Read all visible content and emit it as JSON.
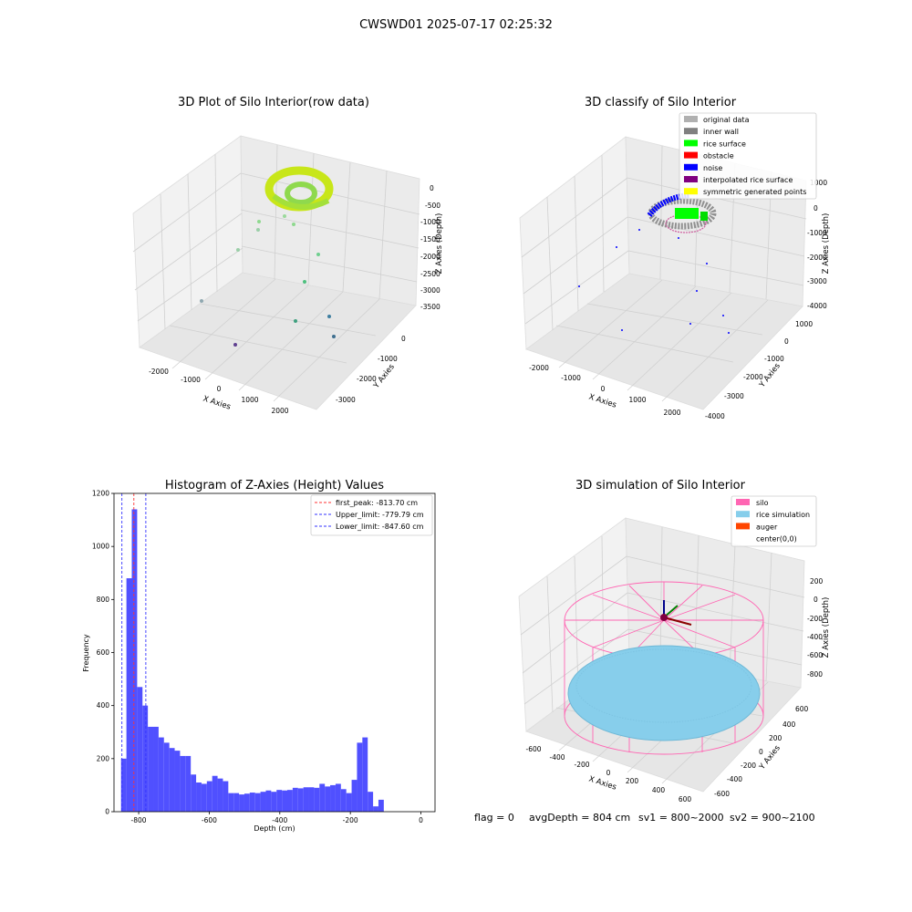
{
  "figure": {
    "suptitle": "CWSWD01 2025-07-17 02:25:32",
    "status": {
      "flag": "flag = 0",
      "avg_depth": "avgDepth = 804 cm",
      "sv1": "sv1 = 800~2000",
      "sv2": "sv2 = 900~2100"
    }
  },
  "colors": {
    "histogram_bar": "#5050ff",
    "first_peak_line": "#ff3333",
    "limit_line": "#3333ff",
    "silo": "#ff66b3",
    "rice_simulation": "#87ceeb",
    "auger": "#ff4500",
    "original_data": "#b0b0b0",
    "inner_wall": "#808080",
    "rice_surface": "#00ff00",
    "obstacle": "#ff0000",
    "noise": "#0000ff",
    "interpolated_rice_surface": "#800080",
    "symmetric_generated_points": "#ffff00"
  },
  "chart_data": [
    {
      "type": "scatter",
      "title": "3D Plot of Silo Interior(row data)",
      "xlabel": "X Axies",
      "ylabel": "Y Axies",
      "zlabel": "Z Axies (Depth)",
      "x_ticks": [
        "-2000",
        "-1000",
        "0",
        "1000",
        "2000"
      ],
      "y_ticks": [
        "0",
        "-1000",
        "-2000",
        "-3000"
      ],
      "z_ticks": [
        "0",
        "-500",
        "-1000",
        "-1500",
        "-2000",
        "-2500",
        "-3000",
        "-3500"
      ]
    },
    {
      "type": "scatter",
      "title": "3D classify of Silo Interior",
      "xlabel": "X Axies",
      "ylabel": "Y Axies",
      "zlabel": "Z Axies (Depth)",
      "x_ticks": [
        "-2000",
        "-1000",
        "0",
        "1000",
        "2000"
      ],
      "y_ticks": [
        "1000",
        "0",
        "-1000",
        "-2000",
        "-3000",
        "-4000"
      ],
      "z_ticks": [
        "1000",
        "0",
        "-1000",
        "-2000",
        "-3000",
        "-4000"
      ],
      "legend": [
        {
          "label": "original data",
          "color": "#b0b0b0"
        },
        {
          "label": "inner wall",
          "color": "#808080"
        },
        {
          "label": "rice surface",
          "color": "#00ff00"
        },
        {
          "label": "obstacle",
          "color": "#ff0000"
        },
        {
          "label": "noise",
          "color": "#0000ff"
        },
        {
          "label": "interpolated rice surface",
          "color": "#800080"
        },
        {
          "label": "symmetric generated points",
          "color": "#ffff00"
        }
      ],
      "legend_position": "top-right"
    },
    {
      "type": "bar",
      "title": "Histogram of Z-Axies (Height) Values",
      "xlabel": "Depth (cm)",
      "ylabel": "Frequency",
      "xlim": [
        -870,
        40
      ],
      "ylim": [
        0,
        1200
      ],
      "x_ticks": [
        "-800",
        "-600",
        "-400",
        "-200",
        "0"
      ],
      "y_ticks": [
        "0",
        "200",
        "400",
        "600",
        "800",
        "1000",
        "1200"
      ],
      "bin_width": 15.2,
      "bins_start": -850,
      "values": [
        200,
        880,
        1140,
        470,
        400,
        320,
        320,
        280,
        260,
        240,
        230,
        210,
        210,
        140,
        110,
        105,
        115,
        135,
        125,
        115,
        70,
        70,
        65,
        68,
        72,
        70,
        75,
        80,
        75,
        82,
        80,
        82,
        90,
        88,
        92,
        92,
        90,
        105,
        95,
        100,
        105,
        85,
        70,
        120,
        260,
        280,
        75,
        20,
        45
      ],
      "vlines": [
        {
          "label": "first_peak: -813.70 cm",
          "x": -813.7,
          "color": "#ff3333"
        },
        {
          "label": "Upper_limit: -779.79 cm",
          "x": -779.79,
          "color": "#3333ff"
        },
        {
          "label": "Lower_limit: -847.60 cm",
          "x": -847.6,
          "color": "#3333ff"
        }
      ],
      "legend_position": "top-right"
    },
    {
      "type": "scatter",
      "title": "3D simulation of Silo Interior",
      "xlabel": "X Axies",
      "ylabel": "Y Axies",
      "zlabel": "Z Axies (Depth)",
      "x_ticks": [
        "-600",
        "-400",
        "-200",
        "0",
        "200",
        "400",
        "600"
      ],
      "y_ticks": [
        "600",
        "400",
        "200",
        "0",
        "-200",
        "-400",
        "-600"
      ],
      "z_ticks": [
        "200",
        "0",
        "-200",
        "-400",
        "-600",
        "-800"
      ],
      "legend": [
        {
          "label": "silo",
          "color": "#ff66b3"
        },
        {
          "label": "rice simulation",
          "color": "#87ceeb"
        },
        {
          "label": "auger",
          "color": "#ff4500"
        },
        {
          "label": "center(0,0)",
          "color": ""
        }
      ],
      "legend_position": "top-right"
    }
  ]
}
